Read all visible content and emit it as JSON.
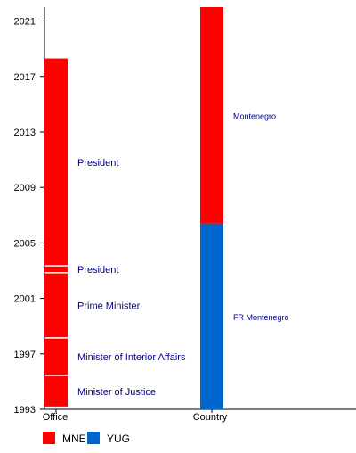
{
  "chart_data": {
    "type": "timeline-bar",
    "title": "",
    "xlabel": "",
    "ylabel": "",
    "ylim": [
      1993,
      2022
    ],
    "yticks": [
      1993,
      1997,
      2001,
      2005,
      2009,
      2013,
      2017,
      2021
    ],
    "categories": [
      "Office",
      "Country"
    ],
    "legend_position": "bottom-left",
    "legend": [
      {
        "key": "MNE",
        "label": "MNE",
        "color": "#ff0000"
      },
      {
        "key": "YUG",
        "label": "YUG",
        "color": "#0066cc"
      }
    ],
    "bars": [
      {
        "category": "Office",
        "segments": [
          {
            "start": 1993.2,
            "end": 1995.4,
            "label": "Minister of Justice",
            "group": "MNE"
          },
          {
            "start": 1995.5,
            "end": 1998.1,
            "label": "Minister of Interior Affairs",
            "group": "MNE"
          },
          {
            "start": 1998.2,
            "end": 2002.8,
            "label": "Prime Minister",
            "group": "MNE"
          },
          {
            "start": 2002.9,
            "end": 2003.3,
            "label": "",
            "group": "MNE"
          },
          {
            "start": 2003.4,
            "end": 2018.3,
            "label": "President",
            "group": "MNE"
          }
        ],
        "labels": [
          {
            "text": "Minister of Justice",
            "at": 1994.3
          },
          {
            "text": "Minister of Interior Affairs",
            "at": 1996.8
          },
          {
            "text": "Prime Minister",
            "at": 2000.5
          },
          {
            "text": "President",
            "at": 2003.1
          },
          {
            "text": "President",
            "at": 2010.8
          }
        ]
      },
      {
        "category": "Country",
        "segments": [
          {
            "start": 1993.0,
            "end": 2006.4,
            "label": "FR Montenegro",
            "group": "YUG"
          },
          {
            "start": 2006.4,
            "end": 2022.0,
            "label": "Montenegro",
            "group": "MNE"
          }
        ],
        "labels": [
          {
            "text": "FR Montenegro",
            "at": 1999.7
          },
          {
            "text": "Montenegro",
            "at": 2014.2
          }
        ]
      }
    ]
  }
}
